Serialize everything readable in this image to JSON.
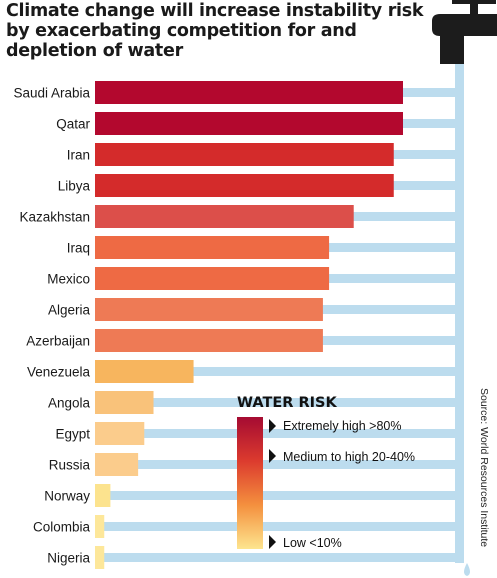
{
  "chart_data": {
    "type": "bar",
    "orientation": "horizontal",
    "title": "Climate change will increase instability risk by exacerbating competition for and depletion of water",
    "categories": [
      "Saudi Arabia",
      "Qatar",
      "Iran",
      "Libya",
      "Kazakhstan",
      "Iraq",
      "Mexico",
      "Algeria",
      "Azerbaijan",
      "Venezuela",
      "Angola",
      "Egypt",
      "Russia",
      "Norway",
      "Colombia",
      "Nigeria"
    ],
    "values": [
      100,
      100,
      97,
      97,
      84,
      76,
      76,
      74,
      74,
      32,
      19,
      16,
      14,
      5,
      3,
      3
    ],
    "bar_colors": [
      "#b3082e",
      "#b3082e",
      "#d42b2b",
      "#d42b2b",
      "#dc4f4a",
      "#ee6a44",
      "#ee6a44",
      "#ee7a55",
      "#ee7a55",
      "#f7b55e",
      "#f9c27a",
      "#fbcc8c",
      "#fbcc8c",
      "#fce38e",
      "#fde79a",
      "#fde79a"
    ],
    "legend": {
      "title": "WATER RISK",
      "items": [
        "Extremely high >80%",
        "Medium to high 20-40%",
        "Low <10%"
      ],
      "gradient": [
        "#a50b32",
        "#dc3b2e",
        "#f4903e",
        "#fde58f"
      ],
      "placement": "bottom-right"
    },
    "source": "Source: World Resources Institute",
    "pipe_color": "#bcdcee",
    "tap_color": "#1c1c1c"
  }
}
